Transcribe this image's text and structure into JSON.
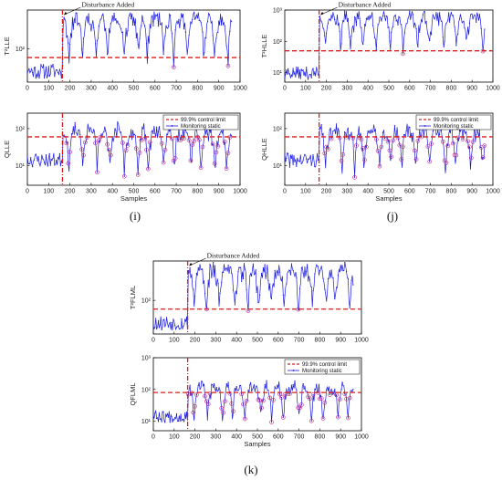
{
  "figure": {
    "panel_labels": [
      "(i)",
      "(j)",
      "(k)"
    ]
  },
  "chart_data": [
    {
      "id": "i-top",
      "panel": "(i)",
      "type": "line",
      "ylabel": "T²LLE",
      "xlabel": "",
      "xlim": [
        0,
        1000
      ],
      "ylim": [
        14,
        1000
      ],
      "yscale": "log",
      "xticks": [
        "0",
        "100",
        "200",
        "300",
        "400",
        "500",
        "600",
        "700",
        "800",
        "900",
        "1000"
      ],
      "yticks": [
        {
          "v": 100,
          "label": "10²"
        }
      ],
      "control_limit": 60,
      "disturbance_at": 165,
      "annotation": "Disturbance Added",
      "legend": null,
      "seed": 11
    },
    {
      "id": "i-bottom",
      "panel": "(i)",
      "type": "line",
      "ylabel": "QLLE",
      "xlabel": "Samples",
      "xlim": [
        0,
        1000
      ],
      "ylim": [
        3,
        260
      ],
      "yscale": "log",
      "xticks": [
        "0",
        "100",
        "200",
        "300",
        "400",
        "500",
        "600",
        "700",
        "800",
        "900",
        "1000"
      ],
      "yticks": [
        {
          "v": 10,
          "label": "10¹"
        },
        {
          "v": 100,
          "label": "10²"
        }
      ],
      "control_limit": 60,
      "disturbance_at": 165,
      "annotation": "",
      "legend": [
        "99.9% control limit",
        "Monitoring static"
      ],
      "seed": 23
    },
    {
      "id": "j-top",
      "panel": "(j)",
      "type": "line",
      "ylabel": "T²HLLE",
      "xlabel": "",
      "xlim": [
        0,
        1000
      ],
      "ylim": [
        5,
        1000
      ],
      "yscale": "log",
      "xticks": [
        "0",
        "100",
        "200",
        "300",
        "400",
        "500",
        "600",
        "700",
        "800",
        "900",
        "1000"
      ],
      "yticks": [
        {
          "v": 10,
          "label": "10¹"
        },
        {
          "v": 100,
          "label": "10²"
        },
        {
          "v": 1000,
          "label": "10³"
        }
      ],
      "control_limit": 50,
      "disturbance_at": 165,
      "annotation": "Disturbance Added",
      "legend": null,
      "seed": 37
    },
    {
      "id": "j-bottom",
      "panel": "(j)",
      "type": "line",
      "ylabel": "QHLLE",
      "xlabel": "Samples",
      "xlim": [
        0,
        1000
      ],
      "ylim": [
        3,
        260
      ],
      "yscale": "log",
      "xticks": [
        "0",
        "100",
        "200",
        "300",
        "400",
        "500",
        "600",
        "700",
        "800",
        "900",
        "1000"
      ],
      "yticks": [
        {
          "v": 10,
          "label": "10¹"
        },
        {
          "v": 100,
          "label": "10²"
        }
      ],
      "control_limit": 60,
      "disturbance_at": 165,
      "annotation": "",
      "legend": [
        "99.9% control limit",
        "Monitoring static"
      ],
      "seed": 41
    },
    {
      "id": "k-top",
      "panel": "(k)",
      "type": "line",
      "ylabel": "T²FLML",
      "xlabel": "",
      "xlim": [
        0,
        1000
      ],
      "ylim": [
        14,
        1000
      ],
      "yscale": "log",
      "xticks": [
        "0",
        "100",
        "200",
        "300",
        "400",
        "500",
        "600",
        "700",
        "800",
        "900",
        "1000"
      ],
      "yticks": [
        {
          "v": 100,
          "label": "10²"
        }
      ],
      "control_limit": 60,
      "disturbance_at": 165,
      "annotation": "Disturbance Added",
      "legend": null,
      "seed": 53
    },
    {
      "id": "k-bottom",
      "panel": "(k)",
      "type": "line",
      "ylabel": "QFLML",
      "xlabel": "Samples",
      "xlim": [
        0,
        1000
      ],
      "ylim": [
        5,
        1000
      ],
      "yscale": "log",
      "xticks": [
        "0",
        "100",
        "200",
        "300",
        "400",
        "500",
        "600",
        "700",
        "800",
        "900",
        "1000"
      ],
      "yticks": [
        {
          "v": 10,
          "label": "10¹"
        },
        {
          "v": 100,
          "label": "10²"
        },
        {
          "v": 1000,
          "label": "10³"
        }
      ],
      "control_limit": 80,
      "disturbance_at": 165,
      "annotation": "",
      "legend": [
        "99.9% control limit",
        "Monitoring static"
      ],
      "seed": 67
    }
  ],
  "colors": {
    "series": "#1a1adf",
    "limit": "#d42020",
    "marker": "#c0207a",
    "axis": "#000000"
  }
}
